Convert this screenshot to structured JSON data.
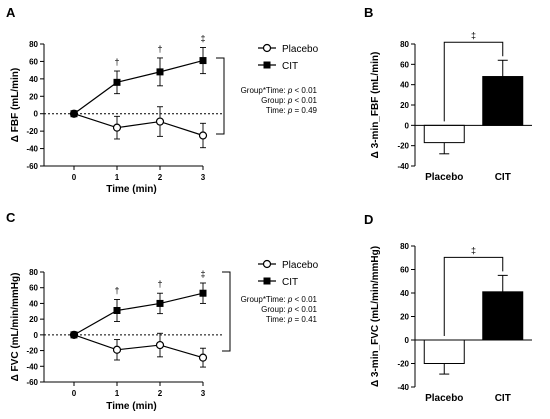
{
  "chart_data": [
    {
      "panel": "A",
      "type": "line",
      "xlabel": "Time (min)",
      "ylabel": "Δ FBF (mL/min)",
      "x": [
        0,
        1,
        2,
        3
      ],
      "xlim": [
        0,
        3
      ],
      "ylim": [
        -60,
        80
      ],
      "yticks": [
        -60,
        -40,
        -20,
        0,
        20,
        40,
        60,
        80
      ],
      "series": [
        {
          "name": "Placebo",
          "marker": "open-circle",
          "y": [
            0,
            -16,
            -9,
            -25
          ],
          "err": [
            0,
            13,
            17,
            14
          ]
        },
        {
          "name": "CIT",
          "marker": "filled-square",
          "y": [
            0,
            36,
            48,
            61
          ],
          "err": [
            0,
            13,
            16,
            15
          ]
        }
      ],
      "annotations": [
        "",
        "†",
        "†",
        "‡"
      ],
      "stats": [
        "Group*Time: p < 0.01",
        "Group: p < 0.01",
        "Time: p = 0.49"
      ],
      "zero_line": "dotted"
    },
    {
      "panel": "B",
      "type": "bar",
      "ylabel": "Δ 3-min_FBF (mL/min)",
      "categories": [
        "Placebo",
        "CIT"
      ],
      "values": [
        -17,
        48
      ],
      "err": [
        11,
        16
      ],
      "colors": [
        "#ffffff",
        "#000000"
      ],
      "ylim": [
        -40,
        80
      ],
      "yticks": [
        -40,
        -20,
        0,
        20,
        40,
        60,
        80
      ],
      "annotation": "‡"
    },
    {
      "panel": "C",
      "type": "line",
      "xlabel": "Time (min)",
      "ylabel": "Δ FVC (mL/min/mmHg)",
      "x": [
        0,
        1,
        2,
        3
      ],
      "xlim": [
        0,
        3
      ],
      "ylim": [
        -60,
        80
      ],
      "yticks": [
        -60,
        -40,
        -20,
        0,
        20,
        40,
        60,
        80
      ],
      "series": [
        {
          "name": "Placebo",
          "marker": "open-circle",
          "y": [
            0,
            -19,
            -13,
            -29
          ],
          "err": [
            0,
            13,
            15,
            12
          ]
        },
        {
          "name": "CIT",
          "marker": "filled-square",
          "y": [
            0,
            31,
            40,
            53
          ],
          "err": [
            0,
            14,
            13,
            13
          ]
        }
      ],
      "annotations": [
        "",
        "†",
        "†",
        "‡"
      ],
      "stats": [
        "Group*Time: p < 0.01",
        "Group: p < 0.01",
        "Time: p = 0.41"
      ],
      "zero_line": "dotted"
    },
    {
      "panel": "D",
      "type": "bar",
      "ylabel": "Δ 3-min_FVC (mL/min/mmHg)",
      "categories": [
        "Placebo",
        "CIT"
      ],
      "values": [
        -20,
        41
      ],
      "err": [
        9,
        14
      ],
      "colors": [
        "#ffffff",
        "#000000"
      ],
      "ylim": [
        -40,
        80
      ],
      "yticks": [
        -40,
        -20,
        0,
        20,
        40,
        60,
        80
      ],
      "annotation": "‡"
    }
  ]
}
